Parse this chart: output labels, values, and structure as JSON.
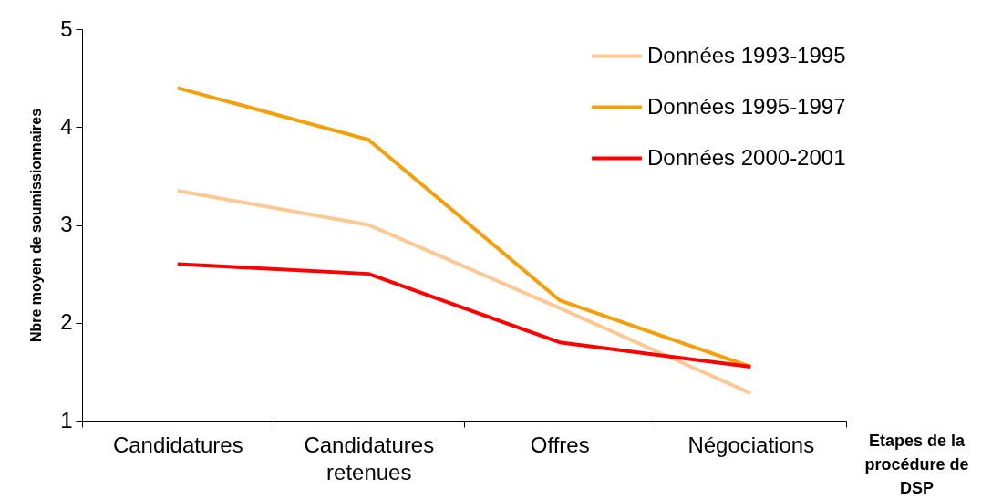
{
  "chart_data": {
    "type": "line",
    "xlabel": "Etapes de la procédure de DSP",
    "ylabel": "Nbre moyen de soumissionnaires",
    "categories": [
      "Candidatures",
      "Candidatures retenues",
      "Offres",
      "Négociations"
    ],
    "series": [
      {
        "name": "Données 1993-1995",
        "color": "#fcc995",
        "values": [
          3.35,
          3.0,
          2.15,
          1.28
        ]
      },
      {
        "name": "Données 1995-1997",
        "color": "#f59f0a",
        "values": [
          4.4,
          3.87,
          2.23,
          1.55
        ]
      },
      {
        "name": "Données 2000-2001",
        "color": "#ff0000",
        "values": [
          2.6,
          2.5,
          1.8,
          1.55
        ]
      }
    ],
    "ylim": [
      1,
      5
    ],
    "yticks": [
      1,
      2,
      3,
      4,
      5
    ],
    "grid": false,
    "legend": "top right",
    "marker": "none",
    "line_style": "solid"
  }
}
